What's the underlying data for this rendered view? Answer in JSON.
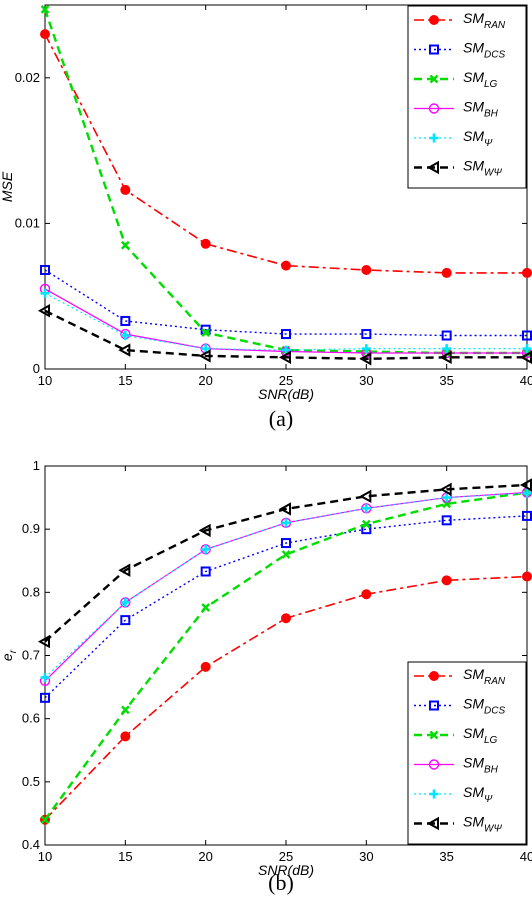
{
  "chart_data": [
    {
      "type": "line",
      "caption": "(a)",
      "xlabel": "SNR(dB)",
      "ylabel": "MSE",
      "x": [
        10,
        15,
        20,
        25,
        30,
        35,
        40
      ],
      "xlim": [
        10,
        40
      ],
      "ylim": [
        0,
        0.025
      ],
      "xticks": [
        10,
        15,
        20,
        25,
        30,
        35,
        40
      ],
      "yticks": [
        0,
        0.01,
        0.02
      ],
      "ytick_labels": [
        "0",
        "0.01",
        "0.02"
      ],
      "legend_position": "top-right",
      "series": [
        {
          "name": "SM",
          "sub": "RAN",
          "color": "#ff0000",
          "values": [
            0.023,
            0.0123,
            0.0086,
            0.0071,
            0.0068,
            0.0066,
            0.0066
          ]
        },
        {
          "name": "SM",
          "sub": "DCS",
          "color": "#0000ff",
          "values": [
            0.0068,
            0.0033,
            0.0027,
            0.0024,
            0.0024,
            0.0023,
            0.0023
          ]
        },
        {
          "name": "SM",
          "sub": "LG",
          "color": "#00dd00",
          "values": [
            0.0247,
            0.0085,
            0.0025,
            0.0013,
            0.0012,
            0.0011,
            0.0011
          ]
        },
        {
          "name": "SM",
          "sub": "BH",
          "color": "#ff00ff",
          "values": [
            0.0055,
            0.0024,
            0.0014,
            0.0012,
            0.0011,
            0.0011,
            0.0011
          ]
        },
        {
          "name": "SM",
          "sub": "Ψ",
          "color": "#00e5ff",
          "values": [
            0.0052,
            0.0023,
            0.0014,
            0.0013,
            0.0014,
            0.0014,
            0.0014
          ]
        },
        {
          "name": "SM",
          "sub": "WΨ",
          "color": "#000000",
          "values": [
            0.004,
            0.0013,
            0.0009,
            0.0008,
            0.0007,
            0.0008,
            0.0008
          ]
        }
      ]
    },
    {
      "type": "line",
      "caption": "(b)",
      "xlabel": "SNR(dB)",
      "ylabel": "e",
      "ylabel_sub": "r",
      "x": [
        10,
        15,
        20,
        25,
        30,
        35,
        40
      ],
      "xlim": [
        10,
        40
      ],
      "ylim": [
        0.4,
        1
      ],
      "xticks": [
        10,
        15,
        20,
        25,
        30,
        35,
        40
      ],
      "yticks": [
        0.4,
        0.5,
        0.6,
        0.7,
        0.8,
        0.9,
        1
      ],
      "ytick_labels": [
        "0.4",
        "0.5",
        "0.6",
        "0.7",
        "0.8",
        "0.9",
        "1"
      ],
      "legend_position": "bottom-right",
      "series": [
        {
          "name": "SM",
          "sub": "RAN",
          "color": "#ff0000",
          "values": [
            0.44,
            0.572,
            0.682,
            0.759,
            0.797,
            0.819,
            0.825
          ]
        },
        {
          "name": "SM",
          "sub": "DCS",
          "color": "#0000ff",
          "values": [
            0.633,
            0.756,
            0.833,
            0.878,
            0.9,
            0.914,
            0.921
          ]
        },
        {
          "name": "SM",
          "sub": "LG",
          "color": "#00dd00",
          "values": [
            0.44,
            0.614,
            0.776,
            0.86,
            0.908,
            0.94,
            0.958
          ]
        },
        {
          "name": "SM",
          "sub": "BH",
          "color": "#ff00ff",
          "values": [
            0.66,
            0.784,
            0.868,
            0.91,
            0.933,
            0.95,
            0.958
          ]
        },
        {
          "name": "SM",
          "sub": "Ψ",
          "color": "#00e5ff",
          "values": [
            0.665,
            0.784,
            0.868,
            0.91,
            0.933,
            0.95,
            0.957
          ]
        },
        {
          "name": "SM",
          "sub": "WΨ",
          "color": "#000000",
          "values": [
            0.722,
            0.835,
            0.898,
            0.932,
            0.952,
            0.963,
            0.97
          ]
        }
      ]
    }
  ]
}
